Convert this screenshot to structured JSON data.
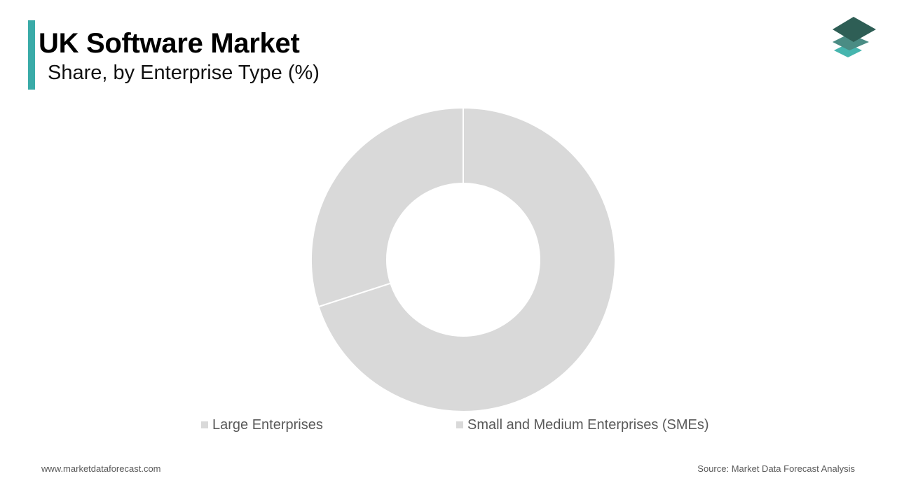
{
  "header": {
    "title": "UK Software Market",
    "subtitle": "Share, by Enterprise Type (%)",
    "accent_color": "#3aaba8"
  },
  "logo": {
    "icon": "stacked-layers-logo-icon",
    "colors": [
      "#2e5e55",
      "#4a8c84",
      "#46b5ae"
    ]
  },
  "chart_data": {
    "type": "pie",
    "variant": "donut",
    "categories": [
      "Large Enterprises",
      "Small and Medium Enterprises (SMEs)"
    ],
    "values": [
      70,
      30
    ],
    "colors": [
      "#d9d9d9",
      "#d9d9d9"
    ],
    "legend": "bottom",
    "title": "",
    "data_labels": false
  },
  "footer": {
    "website": "www.marketdataforecast.com",
    "source": "Source: Market Data Forecast Analysis"
  }
}
